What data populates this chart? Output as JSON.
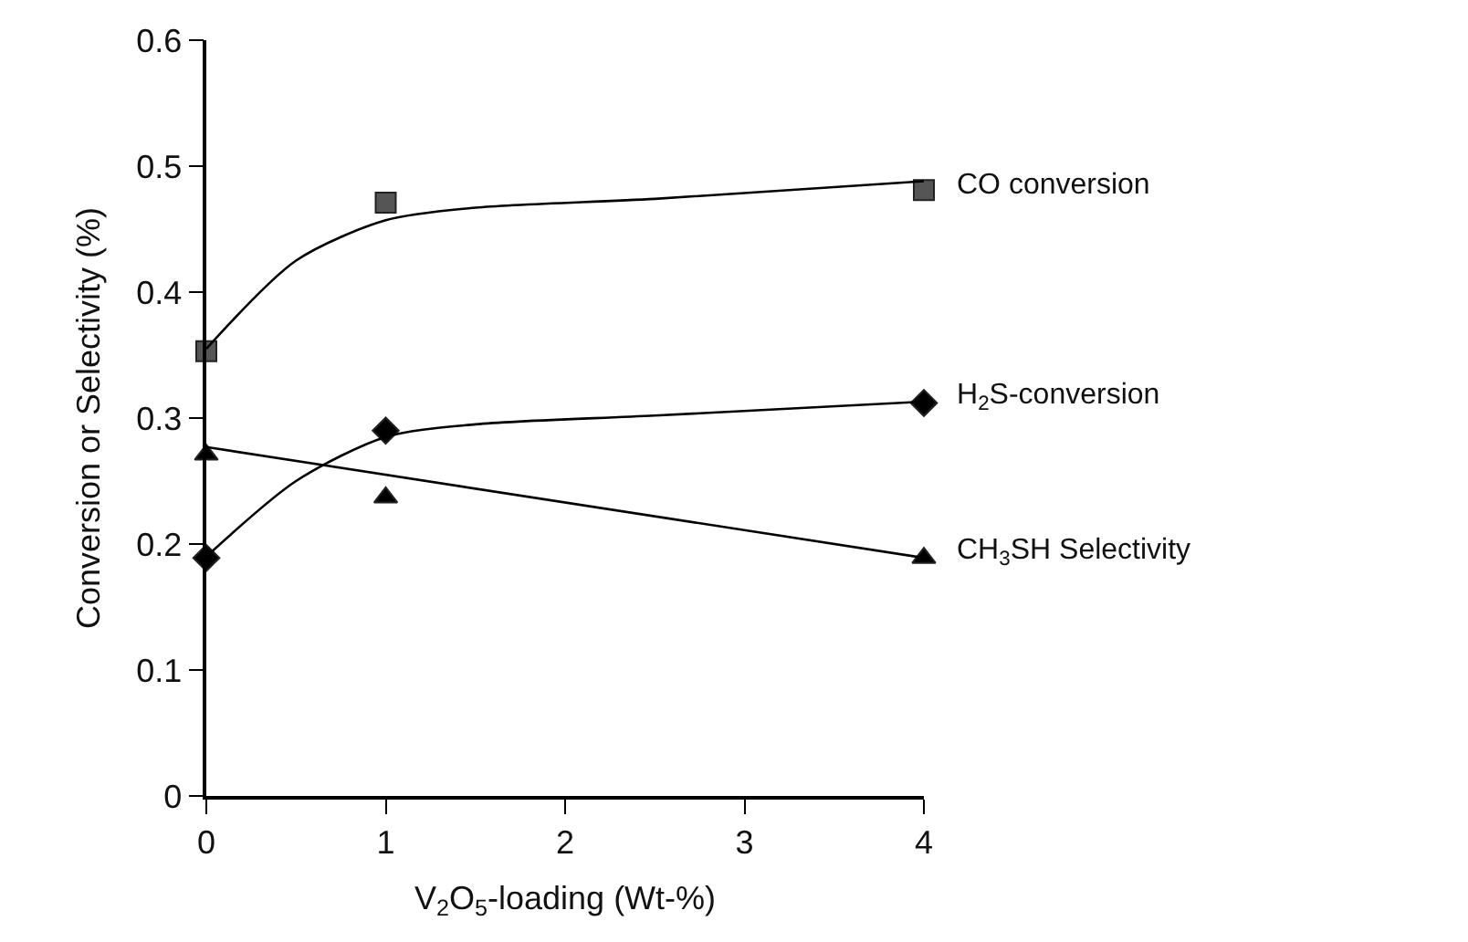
{
  "chart_data": {
    "type": "scatter",
    "xlabel": "V$_{2}$O$_{5}$-loading (Wt-%)",
    "ylabel": "Conversion or Selectivity (%)",
    "xlim": [
      0,
      4
    ],
    "xticks": [
      0,
      1,
      2,
      3,
      4
    ],
    "ylim": [
      0,
      0.6
    ],
    "yticks": [
      0,
      0.1,
      0.2,
      0.3,
      0.4,
      0.5,
      0.6
    ],
    "series": [
      {
        "name": "CO conversion",
        "marker": "square",
        "color": "#555555",
        "x": [
          0,
          1,
          4
        ],
        "values": [
          0.353,
          0.471,
          0.481
        ]
      },
      {
        "name": "H$_{2}$S-conversion",
        "marker": "diamond",
        "color": "#000000",
        "x": [
          0,
          1,
          4
        ],
        "values": [
          0.189,
          0.29,
          0.312
        ]
      },
      {
        "name": "CH$_{3}$SH Selectivity",
        "marker": "triangle",
        "color": "#000000",
        "x": [
          0,
          1,
          4
        ],
        "values": [
          0.271,
          0.237,
          0.189
        ]
      },
      {
        "type": "line",
        "marker": "none",
        "color": "#000000",
        "x": [
          0,
          0.5,
          1,
          1.5,
          2.5,
          4
        ],
        "values": [
          0.355,
          0.425,
          0.457,
          0.467,
          0.474,
          0.488
        ]
      },
      {
        "type": "line",
        "marker": "none",
        "color": "#000000",
        "x": [
          0,
          0.5,
          1,
          1.5,
          2.5,
          4
        ],
        "values": [
          0.19,
          0.25,
          0.285,
          0.295,
          0.302,
          0.313
        ]
      },
      {
        "type": "line",
        "marker": "none",
        "color": "#000000",
        "x": [
          0,
          4
        ],
        "values": [
          0.277,
          0.189
        ]
      }
    ]
  }
}
